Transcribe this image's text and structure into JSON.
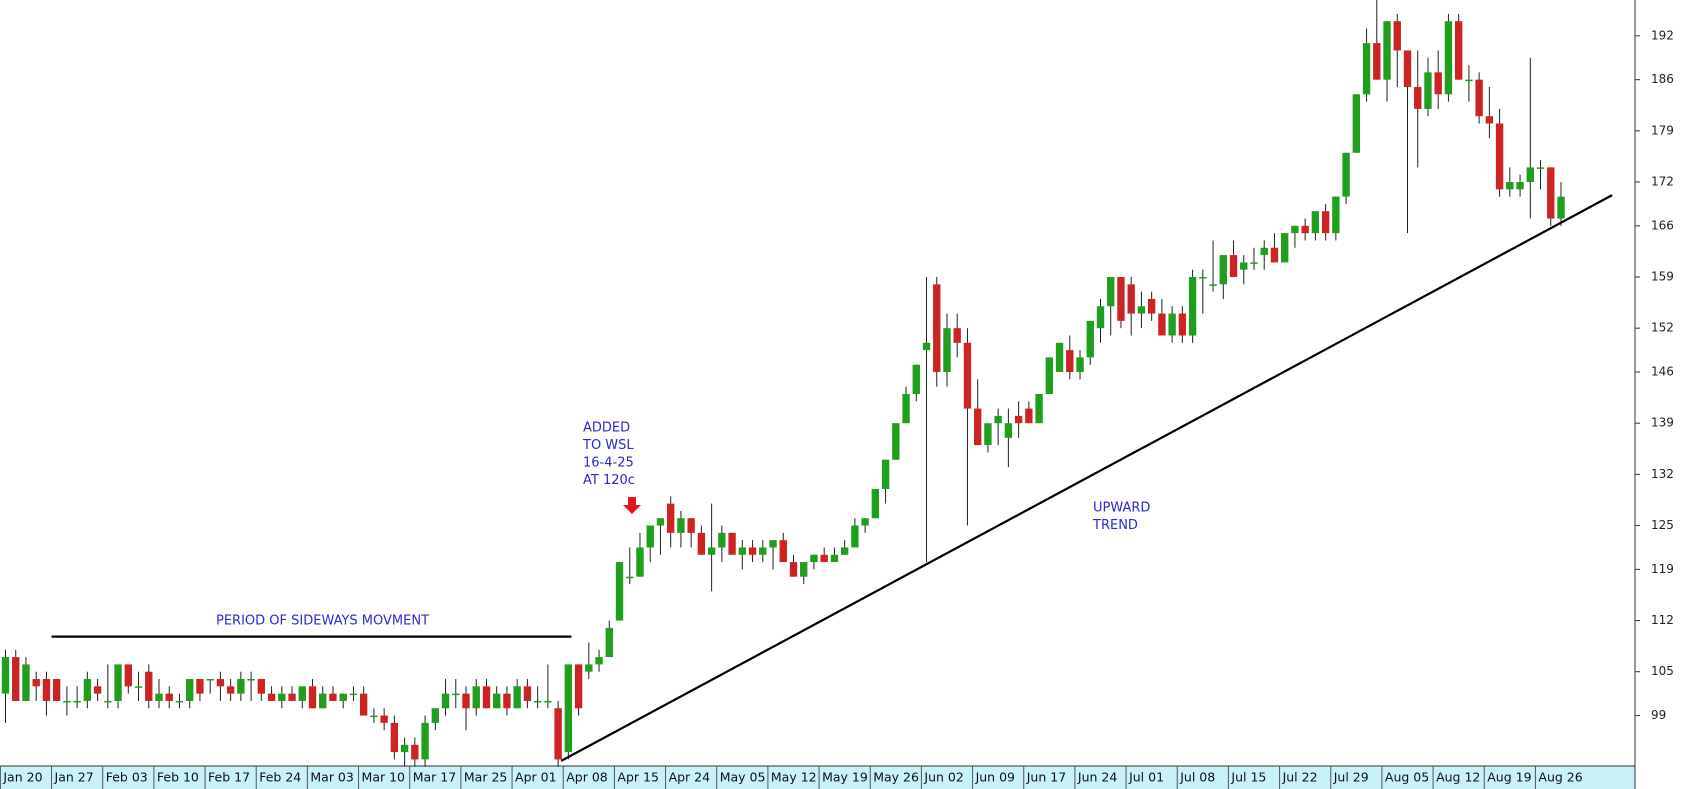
{
  "chart_data": {
    "type": "candlestick",
    "up_color": "#1f9e1f",
    "down_color": "#cc2424",
    "ylim": [
      92.1,
      196.9
    ],
    "yticks": [
      99,
      105,
      112,
      119,
      125,
      132,
      139,
      146,
      152,
      159,
      166,
      172,
      179,
      186,
      192
    ],
    "categories": [
      "Jan 20",
      null,
      null,
      null,
      null,
      "Jan 27",
      null,
      null,
      null,
      null,
      "Feb 03",
      null,
      null,
      null,
      null,
      "Feb 10",
      null,
      null,
      null,
      null,
      "Feb 17",
      null,
      null,
      null,
      null,
      "Feb 24",
      null,
      null,
      null,
      null,
      "Mar 03",
      null,
      null,
      null,
      null,
      "Mar 10",
      null,
      null,
      null,
      null,
      "Mar 17",
      null,
      null,
      null,
      null,
      "Mar 25",
      null,
      null,
      null,
      null,
      "Apr 01",
      null,
      null,
      null,
      null,
      "Apr 08",
      null,
      null,
      null,
      null,
      "Apr 15",
      null,
      null,
      null,
      null,
      "Apr 24",
      null,
      null,
      null,
      null,
      "May 05",
      null,
      null,
      null,
      null,
      "May 12",
      null,
      null,
      null,
      null,
      "May 19",
      null,
      null,
      null,
      null,
      "May 26",
      null,
      null,
      null,
      null,
      "Jun 02",
      null,
      null,
      null,
      null,
      "Jun 09",
      null,
      null,
      null,
      null,
      "Jun 17",
      null,
      null,
      null,
      null,
      "Jun 24",
      null,
      null,
      null,
      null,
      "Jul 01",
      null,
      null,
      null,
      null,
      "Jul 08",
      null,
      null,
      null,
      null,
      "Jul 15",
      null,
      null,
      null,
      null,
      "Jul 22",
      null,
      null,
      null,
      null,
      "Jul 29",
      null,
      null,
      null,
      null,
      "Aug 05",
      null,
      null,
      null,
      null,
      "Aug 12",
      null,
      null,
      null,
      null,
      "Aug 19",
      null,
      null,
      null,
      null,
      "Aug 26",
      null,
      null
    ],
    "ohlc": [
      [
        102,
        108,
        98,
        107
      ],
      [
        107,
        108,
        101,
        101
      ],
      [
        101,
        107,
        101,
        106
      ],
      [
        104,
        105,
        101,
        103
      ],
      [
        104,
        105,
        99,
        101
      ],
      [
        104,
        104,
        101,
        101
      ],
      [
        101,
        103,
        99,
        101
      ],
      [
        101,
        103,
        100,
        101
      ],
      [
        101,
        105,
        100,
        104
      ],
      [
        103,
        104,
        101,
        102
      ],
      [
        101,
        106,
        100,
        101
      ],
      [
        101,
        106,
        100,
        106
      ],
      [
        106,
        106,
        102,
        103
      ],
      [
        103,
        105,
        101,
        103
      ],
      [
        105,
        106,
        100,
        101
      ],
      [
        101,
        104,
        100,
        102
      ],
      [
        102,
        103,
        100,
        101
      ],
      [
        101,
        102,
        100,
        101
      ],
      [
        101,
        104,
        100,
        104
      ],
      [
        104,
        104,
        101,
        102
      ],
      [
        104,
        104,
        102,
        104
      ],
      [
        104,
        105,
        101,
        103
      ],
      [
        103,
        104,
        101,
        102
      ],
      [
        102,
        105,
        101,
        104
      ],
      [
        104,
        105,
        101,
        104
      ],
      [
        104,
        104,
        101,
        102
      ],
      [
        102,
        103,
        101,
        101
      ],
      [
        101,
        103,
        100,
        102
      ],
      [
        102,
        103,
        101,
        101
      ],
      [
        101,
        103,
        100,
        103
      ],
      [
        103,
        104,
        100,
        100
      ],
      [
        100,
        103,
        100,
        102
      ],
      [
        102,
        103,
        101,
        101
      ],
      [
        101,
        102,
        100,
        102
      ],
      [
        102,
        103,
        101,
        102
      ],
      [
        102,
        103,
        100,
        99
      ],
      [
        99,
        100,
        98,
        99
      ],
      [
        99,
        100,
        97,
        98
      ],
      [
        98,
        99,
        93,
        94
      ],
      [
        94,
        96,
        92,
        95
      ],
      [
        95,
        96,
        92,
        93
      ],
      [
        93,
        99,
        92,
        98
      ],
      [
        98,
        100,
        97,
        100
      ],
      [
        100,
        104,
        99,
        102
      ],
      [
        102,
        104,
        100,
        102
      ],
      [
        102,
        103,
        97,
        100
      ],
      [
        100,
        104,
        99,
        103
      ],
      [
        103,
        104,
        100,
        100
      ],
      [
        100,
        103,
        100,
        102
      ],
      [
        102,
        103,
        99,
        100
      ],
      [
        100,
        104,
        100,
        103
      ],
      [
        103,
        104,
        100,
        101
      ],
      [
        101,
        103,
        100,
        101
      ],
      [
        101,
        106,
        100,
        101
      ],
      [
        100,
        101,
        92,
        93
      ],
      [
        94,
        106,
        93,
        106
      ],
      [
        106,
        106,
        99,
        100
      ],
      [
        105,
        109,
        104,
        106
      ],
      [
        106,
        108,
        105,
        107
      ],
      [
        107,
        112,
        107,
        111
      ],
      [
        112,
        120,
        112,
        120
      ],
      [
        118,
        122,
        117,
        118
      ],
      [
        118,
        124,
        118,
        122
      ],
      [
        122,
        125,
        120,
        125
      ],
      [
        125,
        126,
        121,
        126
      ],
      [
        128,
        129,
        122,
        124
      ],
      [
        124,
        127,
        122,
        126
      ],
      [
        126,
        126,
        122,
        124
      ],
      [
        124,
        125,
        121,
        121
      ],
      [
        121,
        128,
        116,
        122
      ],
      [
        122,
        125,
        120,
        124
      ],
      [
        124,
        124,
        121,
        121
      ],
      [
        121,
        123,
        119,
        122
      ],
      [
        122,
        123,
        120,
        121
      ],
      [
        121,
        123,
        120,
        122
      ],
      [
        122,
        123,
        119,
        123
      ],
      [
        123,
        124,
        121,
        120
      ],
      [
        120,
        121,
        118,
        118
      ],
      [
        118,
        119,
        117,
        120
      ],
      [
        120,
        121,
        119,
        121
      ],
      [
        121,
        122,
        120,
        120
      ],
      [
        120,
        122,
        120,
        121
      ],
      [
        121,
        123,
        121,
        122
      ],
      [
        122,
        126,
        122,
        125
      ],
      [
        125,
        126,
        124,
        126
      ],
      [
        126,
        130,
        126,
        130
      ],
      [
        130,
        134,
        128,
        134
      ],
      [
        134,
        139,
        134,
        139
      ],
      [
        139,
        144,
        139,
        143
      ],
      [
        143,
        147,
        142,
        147
      ],
      [
        149,
        159,
        120,
        150
      ],
      [
        158,
        159,
        144,
        146
      ],
      [
        146,
        154,
        144,
        152
      ],
      [
        152,
        154,
        148,
        150
      ],
      [
        150,
        152,
        125,
        141
      ],
      [
        141,
        145,
        136,
        136
      ],
      [
        136,
        139,
        135,
        139
      ],
      [
        139,
        141,
        136,
        140
      ],
      [
        137,
        141,
        133,
        139
      ],
      [
        140,
        142,
        137,
        139
      ],
      [
        141,
        142,
        139,
        139
      ],
      [
        139,
        143,
        139,
        143
      ],
      [
        143,
        148,
        143,
        148
      ],
      [
        146,
        150,
        146,
        150
      ],
      [
        149,
        151,
        145,
        146
      ],
      [
        146,
        149,
        145,
        148
      ],
      [
        148,
        153,
        147,
        153
      ],
      [
        152,
        156,
        150,
        155
      ],
      [
        155,
        159,
        151,
        159
      ],
      [
        159,
        159,
        152,
        153
      ],
      [
        158,
        159,
        151,
        154
      ],
      [
        154,
        157,
        152,
        155
      ],
      [
        156,
        157,
        153,
        154
      ],
      [
        154,
        156,
        151,
        151
      ],
      [
        151,
        155,
        150,
        154
      ],
      [
        154,
        155,
        150,
        151
      ],
      [
        151,
        160,
        150,
        159
      ],
      [
        159,
        160,
        154,
        159
      ],
      [
        158,
        164,
        157,
        158
      ],
      [
        158,
        162,
        156,
        162
      ],
      [
        162,
        164,
        159,
        159
      ],
      [
        160,
        162,
        158,
        161
      ],
      [
        161,
        163,
        160,
        161
      ],
      [
        162,
        164,
        160,
        163
      ],
      [
        163,
        165,
        161,
        161
      ],
      [
        161,
        165,
        161,
        165
      ],
      [
        165,
        166,
        163,
        166
      ],
      [
        166,
        167,
        164,
        165
      ],
      [
        165,
        168,
        164,
        168
      ],
      [
        168,
        169,
        164,
        165
      ],
      [
        165,
        170,
        164,
        170
      ],
      [
        170,
        176,
        169,
        176
      ],
      [
        176,
        184,
        176,
        184
      ],
      [
        184,
        193,
        183,
        191
      ],
      [
        191,
        197,
        186,
        186
      ],
      [
        186,
        194,
        183,
        194
      ],
      [
        194,
        195,
        185,
        190
      ],
      [
        190,
        190,
        165,
        185
      ],
      [
        185,
        190,
        174,
        182
      ],
      [
        182,
        189,
        181,
        187
      ],
      [
        187,
        190,
        182,
        184
      ],
      [
        184,
        195,
        183,
        194
      ],
      [
        194,
        195,
        186,
        186
      ],
      [
        186,
        188,
        183,
        186
      ],
      [
        186,
        187,
        180,
        181
      ],
      [
        181,
        185,
        178,
        180
      ],
      [
        180,
        182,
        170,
        171
      ],
      [
        171,
        174,
        170,
        172
      ],
      [
        171,
        173,
        170,
        172
      ],
      [
        172,
        189,
        167,
        174
      ],
      [
        174,
        175,
        171,
        174
      ],
      [
        174,
        174,
        166,
        167
      ],
      [
        167,
        172,
        166,
        170
      ]
    ],
    "trendlines": [
      {
        "from": [
          4.5,
          109.8
        ],
        "to": [
          55.3,
          109.8
        ]
      },
      {
        "from": [
          54.3,
          92.8
        ],
        "to": [
          157,
          170.2
        ]
      }
    ],
    "annotations": [
      {
        "lines": [
          "PERIOD OF SIDEWAYS MOVMENT"
        ]
      },
      {
        "lines": [
          "ADDED",
          "TO WSL",
          "16-4-25",
          "AT 120c"
        ]
      },
      {
        "lines": [
          "UPWARD",
          "TREND"
        ]
      }
    ]
  }
}
